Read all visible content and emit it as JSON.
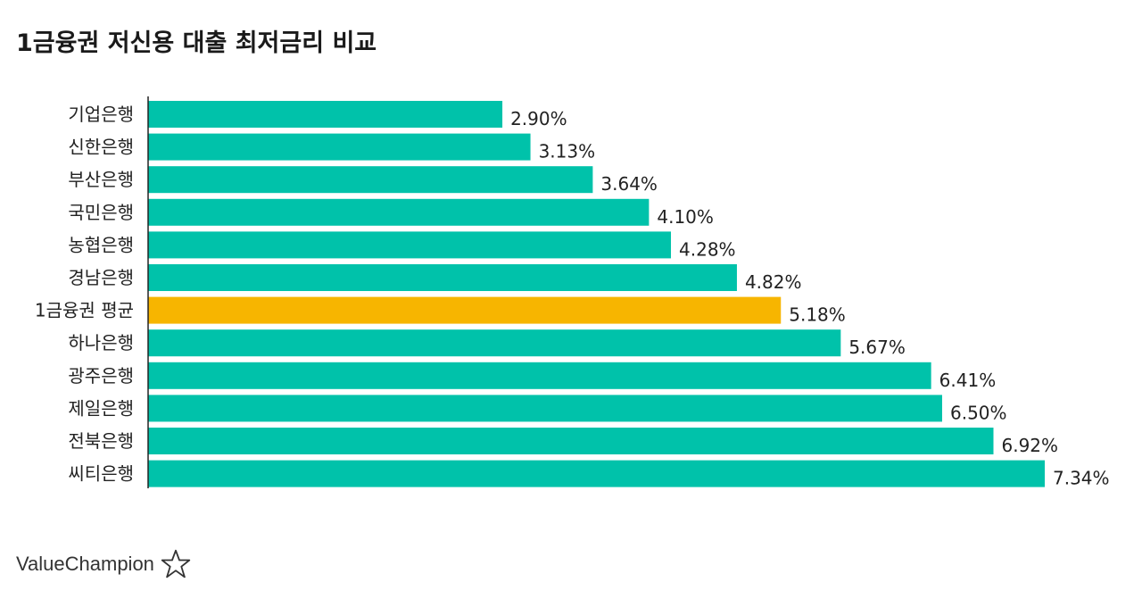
{
  "colors": {
    "bar": "#00c2aa",
    "highlight": "#f7b500",
    "axis": "#222222",
    "text": "#222222"
  },
  "brand": {
    "name": "ValueChampion",
    "icon": "star-outline-icon"
  },
  "chart_data": {
    "type": "bar",
    "orientation": "horizontal",
    "title": "1금융권 저신용 대출 최저금리 비교",
    "xlabel": "",
    "ylabel": "",
    "xlim": [
      0,
      7.34
    ],
    "grid": false,
    "value_suffix": "%",
    "highlight_category": "1금융권 평균",
    "categories": [
      "기업은행",
      "신한은행",
      "부산은행",
      "국민은행",
      "농협은행",
      "경남은행",
      "1금융권 평균",
      "하나은행",
      "광주은행",
      "제일은행",
      "전북은행",
      "씨티은행"
    ],
    "values": [
      2.9,
      3.13,
      3.64,
      4.1,
      4.28,
      4.82,
      5.18,
      5.67,
      6.41,
      6.5,
      6.92,
      7.34
    ],
    "value_labels": [
      "2.90%",
      "3.13%",
      "3.64%",
      "4.10%",
      "4.28%",
      "4.82%",
      "5.18%",
      "5.67%",
      "6.41%",
      "6.50%",
      "6.92%",
      "7.34%"
    ]
  }
}
